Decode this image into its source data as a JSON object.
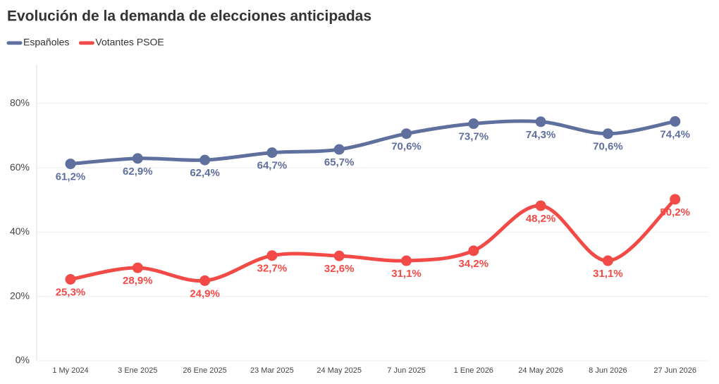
{
  "chart_data": {
    "type": "line",
    "title": "Evolución de la demanda de elecciones anticipadas",
    "categories": [
      "1 My 2024",
      "3 Ene 2025",
      "26 Ene 2025",
      "23 Mar 2025",
      "24 May 2025",
      "7 Jun 2025",
      "1 Ene 2026",
      "24 May 2026",
      "8 Jun 2026",
      "27 Jun 2026"
    ],
    "series": [
      {
        "name": "Españoles",
        "color": "#5f6f9e",
        "values": [
          61.2,
          62.9,
          62.4,
          64.7,
          65.7,
          70.6,
          73.7,
          74.3,
          70.6,
          74.4
        ],
        "value_labels": [
          "61,2%",
          "62,9%",
          "62,4%",
          "64,7%",
          "65,7%",
          "70,6%",
          "73,7%",
          "74,3%",
          "70,6%",
          "74,4%"
        ]
      },
      {
        "name": "Votantes PSOE",
        "color": "#f24a46",
        "values": [
          25.3,
          28.9,
          24.9,
          32.7,
          32.6,
          31.1,
          34.2,
          48.2,
          31.1,
          50.2
        ],
        "value_labels": [
          "25,3%",
          "28,9%",
          "24,9%",
          "32,7%",
          "32,6%",
          "31,1%",
          "34,2%",
          "48,2%",
          "31,1%",
          "50,2%"
        ]
      }
    ],
    "ylim": [
      0,
      92
    ],
    "yticks": [
      {
        "value": 0,
        "label": "0%"
      },
      {
        "value": 20,
        "label": "20%"
      },
      {
        "value": 40,
        "label": "40%"
      },
      {
        "value": 60,
        "label": "60%"
      },
      {
        "value": 80,
        "label": "80%"
      }
    ],
    "grid": true,
    "legend": "top-left"
  }
}
